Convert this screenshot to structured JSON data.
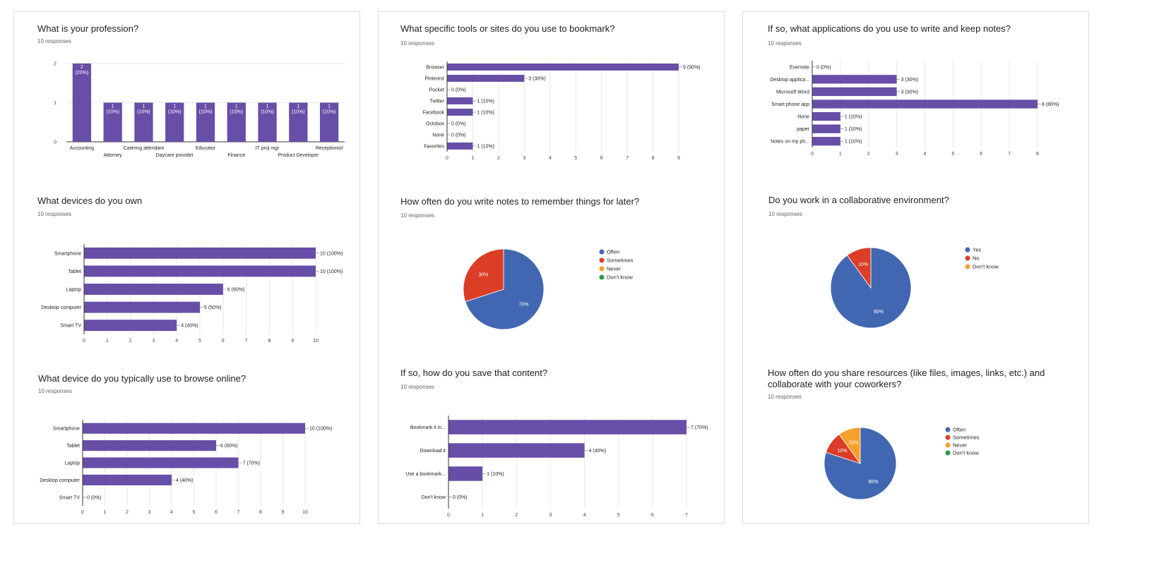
{
  "colors": {
    "bar": "#674ea7",
    "blue": "#4267b2",
    "red": "#db3d27",
    "orange": "#f6a02c",
    "green": "#2f9a47",
    "grid": "#e8e8e8",
    "axis": "#333333"
  },
  "chart_data": [
    {
      "id": "profession",
      "type": "bar",
      "title": "What is your profession?",
      "responses": "10 responses",
      "categories": [
        "Accounting",
        "Attorney",
        "Catering attendant",
        "Daycare provider",
        "Educator",
        "Finance",
        "IT proj mgr",
        "Product Developer",
        "Receptionist"
      ],
      "values": [
        2,
        1,
        1,
        1,
        1,
        1,
        1,
        1,
        1
      ],
      "value_labels": [
        "2",
        "1",
        "1",
        "1",
        "1",
        "1",
        "1",
        "1",
        "1"
      ],
      "pct_labels": [
        "(20%)",
        "(10%)",
        "(10%)",
        "(10%)",
        "(10%)",
        "(10%)",
        "(10%)",
        "(10%)",
        "(10%)"
      ],
      "ylim": [
        0,
        2
      ],
      "yticks": [
        "0",
        "1",
        "2"
      ]
    },
    {
      "id": "devices",
      "type": "bar",
      "orientation": "horizontal",
      "title": "What devices do you own",
      "responses": "10 responses",
      "categories": [
        "Smartphone",
        "Tablet",
        "Laptop",
        "Desktop computer",
        "Smart TV"
      ],
      "values": [
        10,
        10,
        6,
        5,
        4
      ],
      "value_labels": [
        "10 (100%)",
        "10 (100%)",
        "6 (60%)",
        "5 (50%)",
        "4 (40%)"
      ],
      "xlim": [
        0,
        10
      ],
      "xticks": [
        "0",
        "1",
        "2",
        "3",
        "4",
        "5",
        "6",
        "7",
        "8",
        "9",
        "10"
      ]
    },
    {
      "id": "browse",
      "type": "bar",
      "orientation": "horizontal",
      "title": "What device do you typically use to browse online?",
      "responses": "10 responses",
      "categories": [
        "Smartphone",
        "Tablet",
        "Laptop",
        "Desktop computer",
        "Smart TV"
      ],
      "values": [
        10,
        6,
        7,
        4,
        0
      ],
      "value_labels": [
        "10 (100%)",
        "6 (60%)",
        "7 (70%)",
        "4 (40%)",
        "0 (0%)"
      ],
      "xlim": [
        0,
        10
      ],
      "xticks": [
        "0",
        "1",
        "2",
        "3",
        "4",
        "5",
        "6",
        "7",
        "8",
        "9",
        "10"
      ]
    },
    {
      "id": "bookmark",
      "type": "bar",
      "orientation": "horizontal",
      "title": "What specific tools or sites do you use to bookmark?",
      "responses": "10 responses",
      "categories": [
        "Browser",
        "Pinterest",
        "Pocket",
        "Twitter",
        "Facebook",
        "Octobox",
        "None",
        "Favorites"
      ],
      "values": [
        9,
        3,
        0,
        1,
        1,
        0,
        0,
        1
      ],
      "value_labels": [
        "9 (90%)",
        "3 (30%)",
        "0 (0%)",
        "1 (10%)",
        "1 (10%)",
        "0 (0%)",
        "0 (0%)",
        "1 (10%)"
      ],
      "xlim": [
        0,
        9
      ],
      "xticks": [
        "0",
        "1",
        "2",
        "3",
        "4",
        "5",
        "6",
        "7",
        "8",
        "9"
      ]
    },
    {
      "id": "notes_often",
      "type": "pie",
      "title": "How often do you write notes to remember things for later?",
      "responses": "10 responses",
      "labels": [
        "Often",
        "Sometimes",
        "Never",
        "Don't know"
      ],
      "values": [
        70,
        30,
        0,
        0
      ],
      "slice_labels": [
        "70%",
        "30%",
        "",
        ""
      ],
      "colors": [
        "#4267b2",
        "#db3d27",
        "#f6a02c",
        "#2f9a47"
      ],
      "legend": "right"
    },
    {
      "id": "save_content",
      "type": "bar",
      "orientation": "horizontal",
      "title": "If so, how do you save that content?",
      "responses": "10 responses",
      "categories": [
        "Bookmark it in...",
        "Download it",
        "Use a bookmark...",
        "Don't know"
      ],
      "values": [
        7,
        4,
        1,
        0
      ],
      "value_labels": [
        "7 (70%)",
        "4 (40%)",
        "1 (10%)",
        "0 (0%)"
      ],
      "xlim": [
        0,
        7
      ],
      "xticks": [
        "0",
        "1",
        "2",
        "3",
        "4",
        "5",
        "6",
        "7"
      ]
    },
    {
      "id": "apps",
      "type": "bar",
      "orientation": "horizontal",
      "title": "If so, what applications do you use to write and keep notes?",
      "responses": "10 responses",
      "categories": [
        "Evernote",
        "Desktop applica...",
        "Microsoft Word",
        "Smart phone app",
        "None",
        "paper",
        "Notes on my ph..."
      ],
      "values": [
        0,
        3,
        3,
        8,
        1,
        1,
        1
      ],
      "value_labels": [
        "0 (0%)",
        "3 (30%)",
        "3 (30%)",
        "8 (80%)",
        "1 (10%)",
        "1 (10%)",
        "1 (10%)"
      ],
      "xlim": [
        0,
        8
      ],
      "xticks": [
        "0",
        "1",
        "2",
        "3",
        "4",
        "5",
        "6",
        "7",
        "8"
      ]
    },
    {
      "id": "collab_env",
      "type": "pie",
      "title": "Do you work in a collaborative environment?",
      "responses": "10 responses",
      "labels": [
        "Yes",
        "No",
        "Don't know"
      ],
      "values": [
        90,
        10,
        0
      ],
      "slice_labels": [
        "90%",
        "10%",
        ""
      ],
      "colors": [
        "#4267b2",
        "#db3d27",
        "#f6a02c"
      ],
      "legend": "right"
    },
    {
      "id": "share",
      "type": "pie",
      "title_lines": [
        "How often do you share resources (like files, images, links, etc.) and",
        "collaborate with your coworkers?"
      ],
      "responses": "10 responses",
      "labels": [
        "Often",
        "Sometimes",
        "Never",
        "Don't know"
      ],
      "values": [
        80,
        10,
        10,
        0
      ],
      "slice_labels": [
        "80%",
        "10%",
        "10%",
        ""
      ],
      "colors": [
        "#4267b2",
        "#db3d27",
        "#f6a02c",
        "#2f9a47"
      ],
      "legend": "right"
    }
  ]
}
